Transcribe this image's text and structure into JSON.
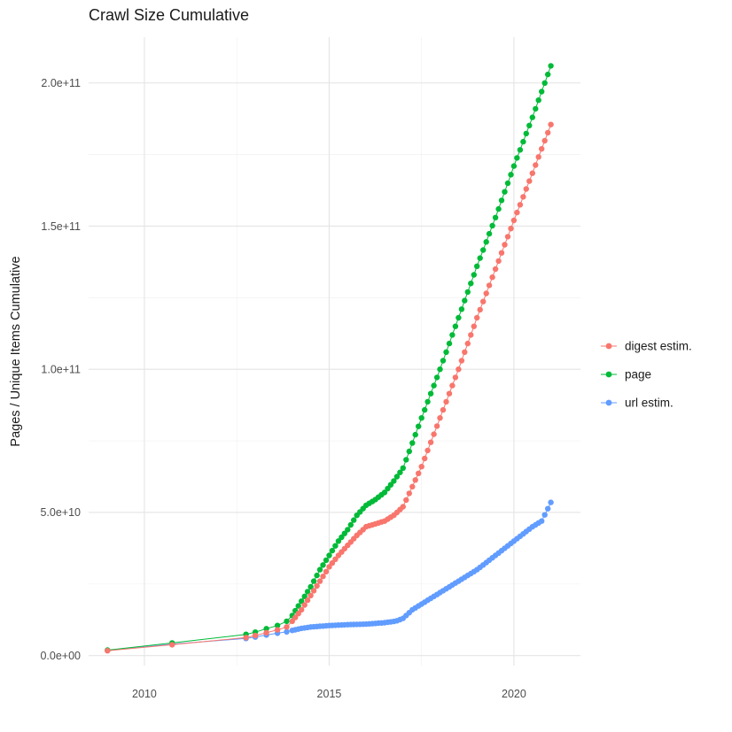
{
  "title": "Crawl Size Cumulative",
  "chart_data": {
    "type": "scatter",
    "title": "Crawl Size Cumulative",
    "xlabel": "",
    "ylabel": "Pages / Unique Items Cumulative",
    "grid": true,
    "legend_position": "right",
    "xlim": [
      2008.49,
      2021.8
    ],
    "ylim": [
      -3500000000.0,
      216000000000.0
    ],
    "x_ticks": [
      {
        "value": 2010,
        "label": "2010"
      },
      {
        "value": 2015,
        "label": "2015"
      },
      {
        "value": 2020,
        "label": "2020"
      }
    ],
    "y_ticks": [
      {
        "value": 0,
        "label": "0.0e+00"
      },
      {
        "value": 50000000000.0,
        "label": "5.0e+10"
      },
      {
        "value": 100000000000.0,
        "label": "1.0e+11"
      },
      {
        "value": 150000000000.0,
        "label": "1.5e+11"
      },
      {
        "value": 200000000000.0,
        "label": "2.0e+11"
      }
    ],
    "x_minor": [
      2012.5,
      2017.5
    ],
    "y_minor": [
      25000000000.0,
      75000000000.0,
      125000000000.0,
      175000000000.0
    ],
    "dense_start": 2014.0,
    "dense_step_years": 0.08333,
    "series": [
      {
        "name": "digest estim.",
        "color": "#F8766D",
        "points": [
          [
            2009.0,
            1700000000.0
          ],
          [
            2010.75,
            3800000000.0
          ],
          [
            2012.75,
            6300000000.0
          ],
          [
            2013.0,
            7000000000.0
          ],
          [
            2013.3,
            8000000000.0
          ],
          [
            2013.6,
            9000000000.0
          ],
          [
            2013.85,
            10000000000.0
          ],
          [
            2014.0,
            12000000000.0
          ],
          [
            2014.25,
            16000000000.0
          ],
          [
            2014.5,
            21000000000.0
          ],
          [
            2014.75,
            26000000000.0
          ],
          [
            2015.0,
            31000000000.0
          ],
          [
            2015.25,
            35000000000.0
          ],
          [
            2015.5,
            38500000000.0
          ],
          [
            2015.75,
            42000000000.0
          ],
          [
            2016.0,
            45000000000.0
          ],
          [
            2016.25,
            46000000000.0
          ],
          [
            2016.5,
            47000000000.0
          ],
          [
            2016.75,
            49000000000.0
          ],
          [
            2017.0,
            52000000000.0
          ],
          [
            2017.25,
            59000000000.0
          ],
          [
            2017.5,
            66000000000.0
          ],
          [
            2018.0,
            83000000000.0
          ],
          [
            2018.5,
            100000000000.0
          ],
          [
            2019.0,
            118000000000.0
          ],
          [
            2019.5,
            135000000000.0
          ],
          [
            2020.0,
            152000000000.0
          ],
          [
            2020.5,
            168500000000.0
          ],
          [
            2021.0,
            185500000000.0
          ]
        ]
      },
      {
        "name": "page",
        "color": "#00BA38",
        "points": [
          [
            2009.0,
            1900000000.0
          ],
          [
            2010.75,
            4400000000.0
          ],
          [
            2012.75,
            7400000000.0
          ],
          [
            2013.0,
            8200000000.0
          ],
          [
            2013.3,
            9400000000.0
          ],
          [
            2013.6,
            10500000000.0
          ],
          [
            2013.85,
            12000000000.0
          ],
          [
            2014.0,
            14000000000.0
          ],
          [
            2014.25,
            19000000000.0
          ],
          [
            2014.5,
            24000000000.0
          ],
          [
            2014.75,
            30000000000.0
          ],
          [
            2015.0,
            35000000000.0
          ],
          [
            2015.25,
            40000000000.0
          ],
          [
            2015.5,
            44000000000.0
          ],
          [
            2015.75,
            49000000000.0
          ],
          [
            2016.0,
            52500000000.0
          ],
          [
            2016.25,
            54500000000.0
          ],
          [
            2016.5,
            57000000000.0
          ],
          [
            2016.75,
            61000000000.0
          ],
          [
            2017.0,
            65500000000.0
          ],
          [
            2017.5,
            83000000000.0
          ],
          [
            2018.0,
            100000000000.0
          ],
          [
            2018.5,
            118000000000.0
          ],
          [
            2019.0,
            136000000000.0
          ],
          [
            2019.5,
            153000000000.0
          ],
          [
            2020.0,
            171000000000.0
          ],
          [
            2020.5,
            188000000000.0
          ],
          [
            2021.0,
            206000000000.0
          ]
        ]
      },
      {
        "name": "url estim.",
        "color": "#619CFF",
        "points": [
          [
            2009.0,
            1800000000.0
          ],
          [
            2010.75,
            4000000000.0
          ],
          [
            2012.75,
            6000000000.0
          ],
          [
            2013.0,
            6500000000.0
          ],
          [
            2013.3,
            7200000000.0
          ],
          [
            2013.6,
            7800000000.0
          ],
          [
            2013.85,
            8300000000.0
          ],
          [
            2014.0,
            8800000000.0
          ],
          [
            2014.25,
            9500000000.0
          ],
          [
            2014.5,
            10000000000.0
          ],
          [
            2015.0,
            10500000000.0
          ],
          [
            2015.5,
            10800000000.0
          ],
          [
            2016.0,
            11000000000.0
          ],
          [
            2016.5,
            11500000000.0
          ],
          [
            2016.8,
            12000000000.0
          ],
          [
            2017.0,
            13000000000.0
          ],
          [
            2017.25,
            16000000000.0
          ],
          [
            2017.5,
            18000000000.0
          ],
          [
            2017.75,
            20000000000.0
          ],
          [
            2018.0,
            22000000000.0
          ],
          [
            2018.5,
            26000000000.0
          ],
          [
            2019.0,
            30000000000.0
          ],
          [
            2019.5,
            35000000000.0
          ],
          [
            2020.0,
            40000000000.0
          ],
          [
            2020.5,
            45000000000.0
          ],
          [
            2020.75,
            47000000000.0
          ],
          [
            2021.0,
            53500000000.0
          ]
        ]
      }
    ]
  }
}
